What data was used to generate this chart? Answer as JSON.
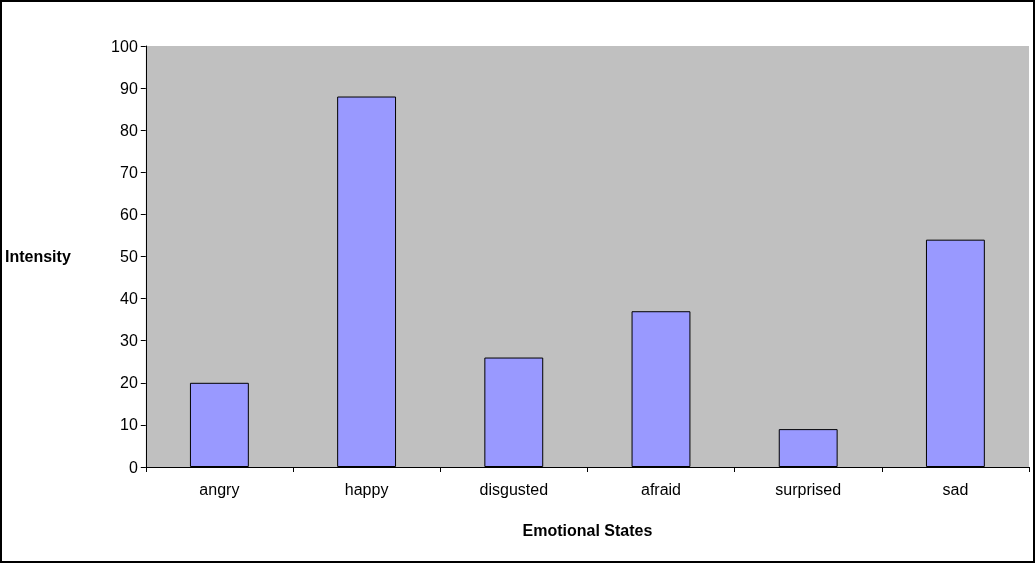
{
  "chart_data": {
    "type": "bar",
    "xlabel": "Emotional States",
    "ylabel": "Intensity",
    "categories": [
      "angry",
      "happy",
      "disgusted",
      "afraid",
      "surprised",
      "sad"
    ],
    "values": [
      20,
      88,
      26,
      37,
      9,
      54
    ],
    "color": "#9999ff",
    "ylim": [
      0,
      100
    ],
    "yticks": [
      0,
      10,
      20,
      30,
      40,
      50,
      60,
      70,
      80,
      90,
      100
    ],
    "grid": false
  }
}
